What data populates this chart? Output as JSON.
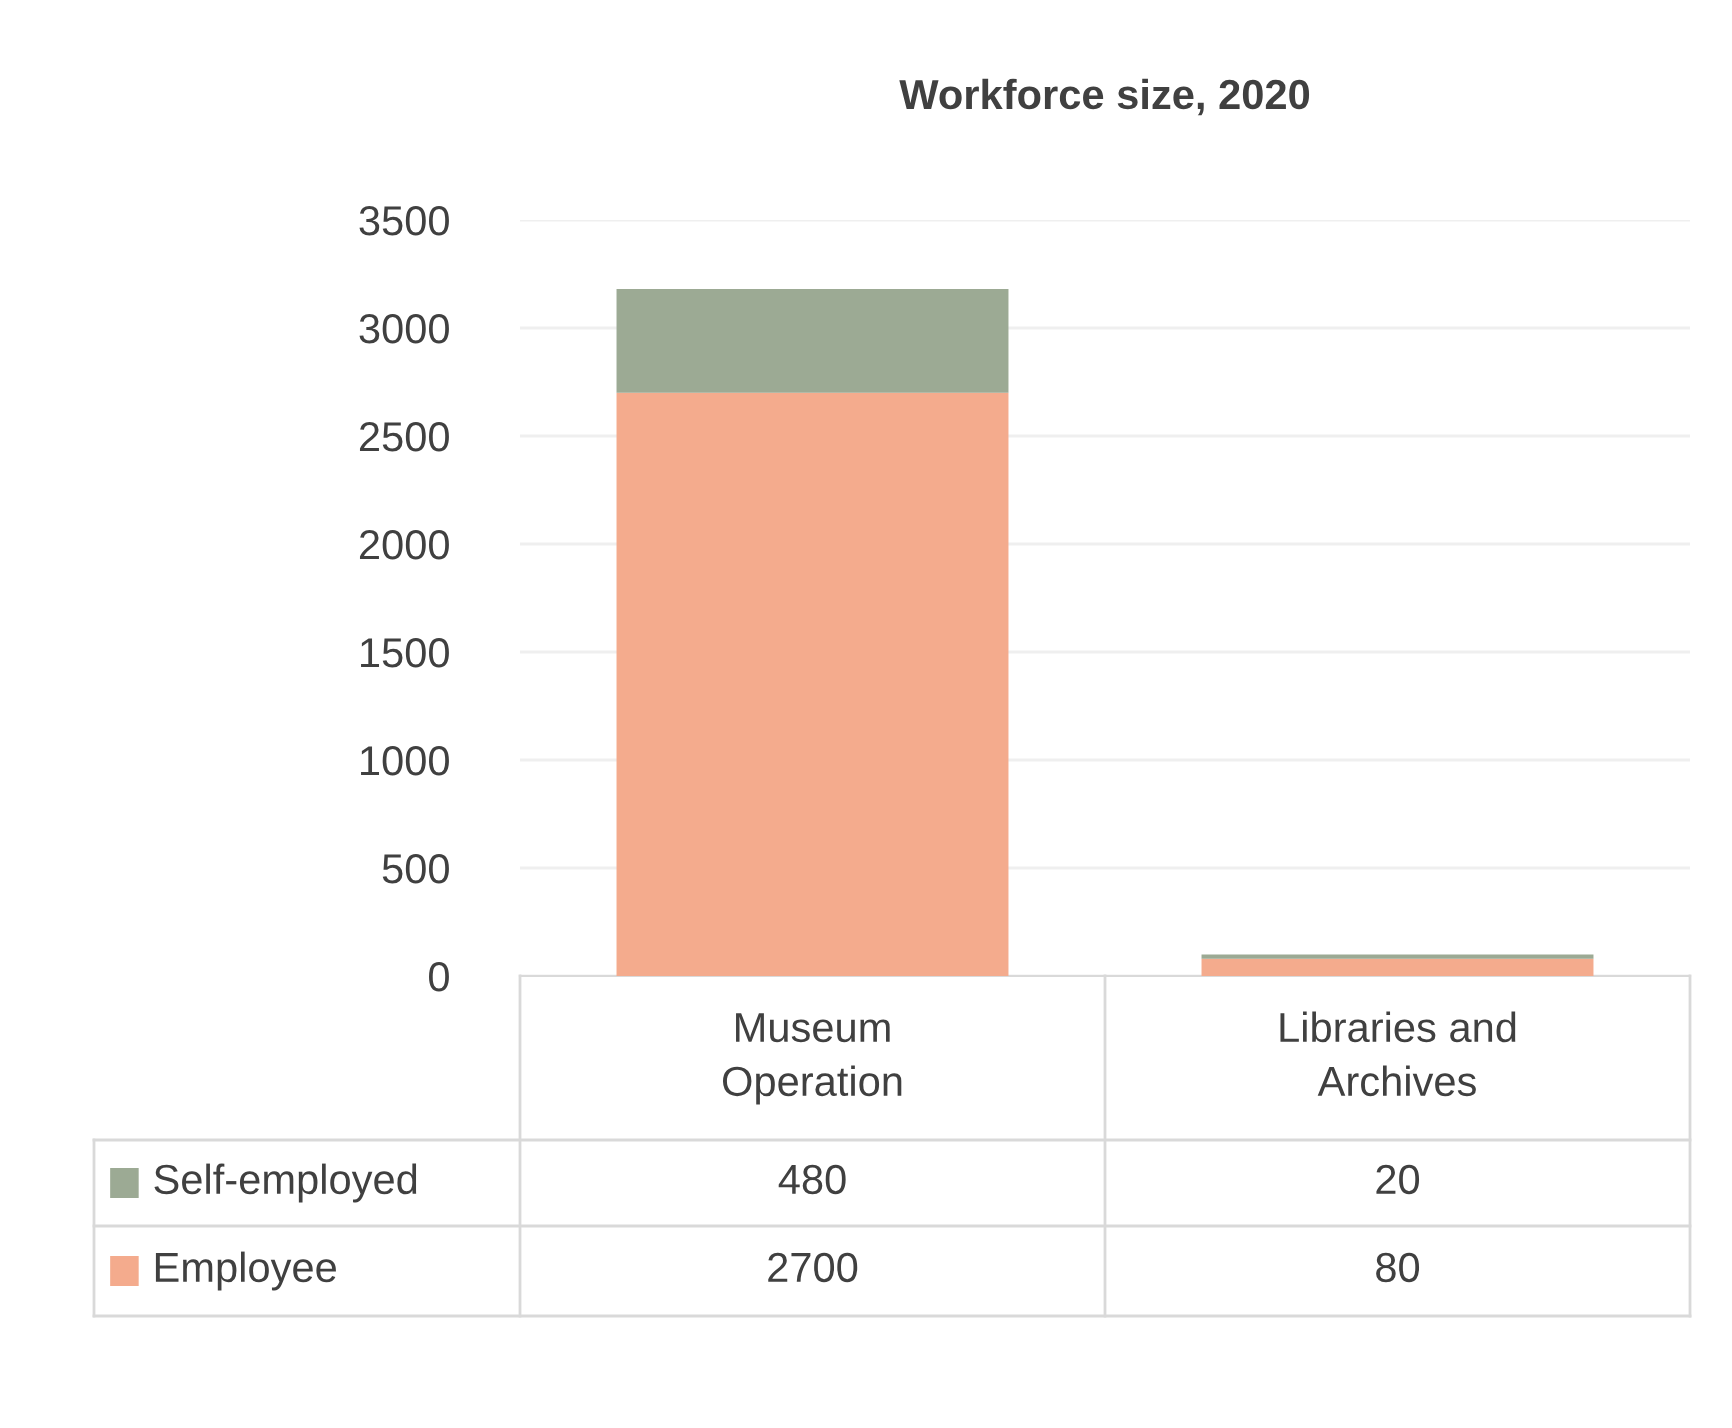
{
  "chart_data": {
    "type": "bar",
    "title": "Workforce size, 2020",
    "categories": [
      "Museum Operation",
      "Libraries and Archives"
    ],
    "series": [
      {
        "name": "Employee",
        "color": "#f4ab8d",
        "values": [
          2700,
          80
        ]
      },
      {
        "name": "Self-employed",
        "color": "#9caa94",
        "values": [
          480,
          20
        ]
      }
    ],
    "stacked": true,
    "ylim": [
      0,
      3500
    ],
    "yticks": [
      0,
      500,
      1000,
      1500,
      2000,
      2500,
      3000,
      3500
    ],
    "grid": "y",
    "legend": "left",
    "data_labels": true
  }
}
